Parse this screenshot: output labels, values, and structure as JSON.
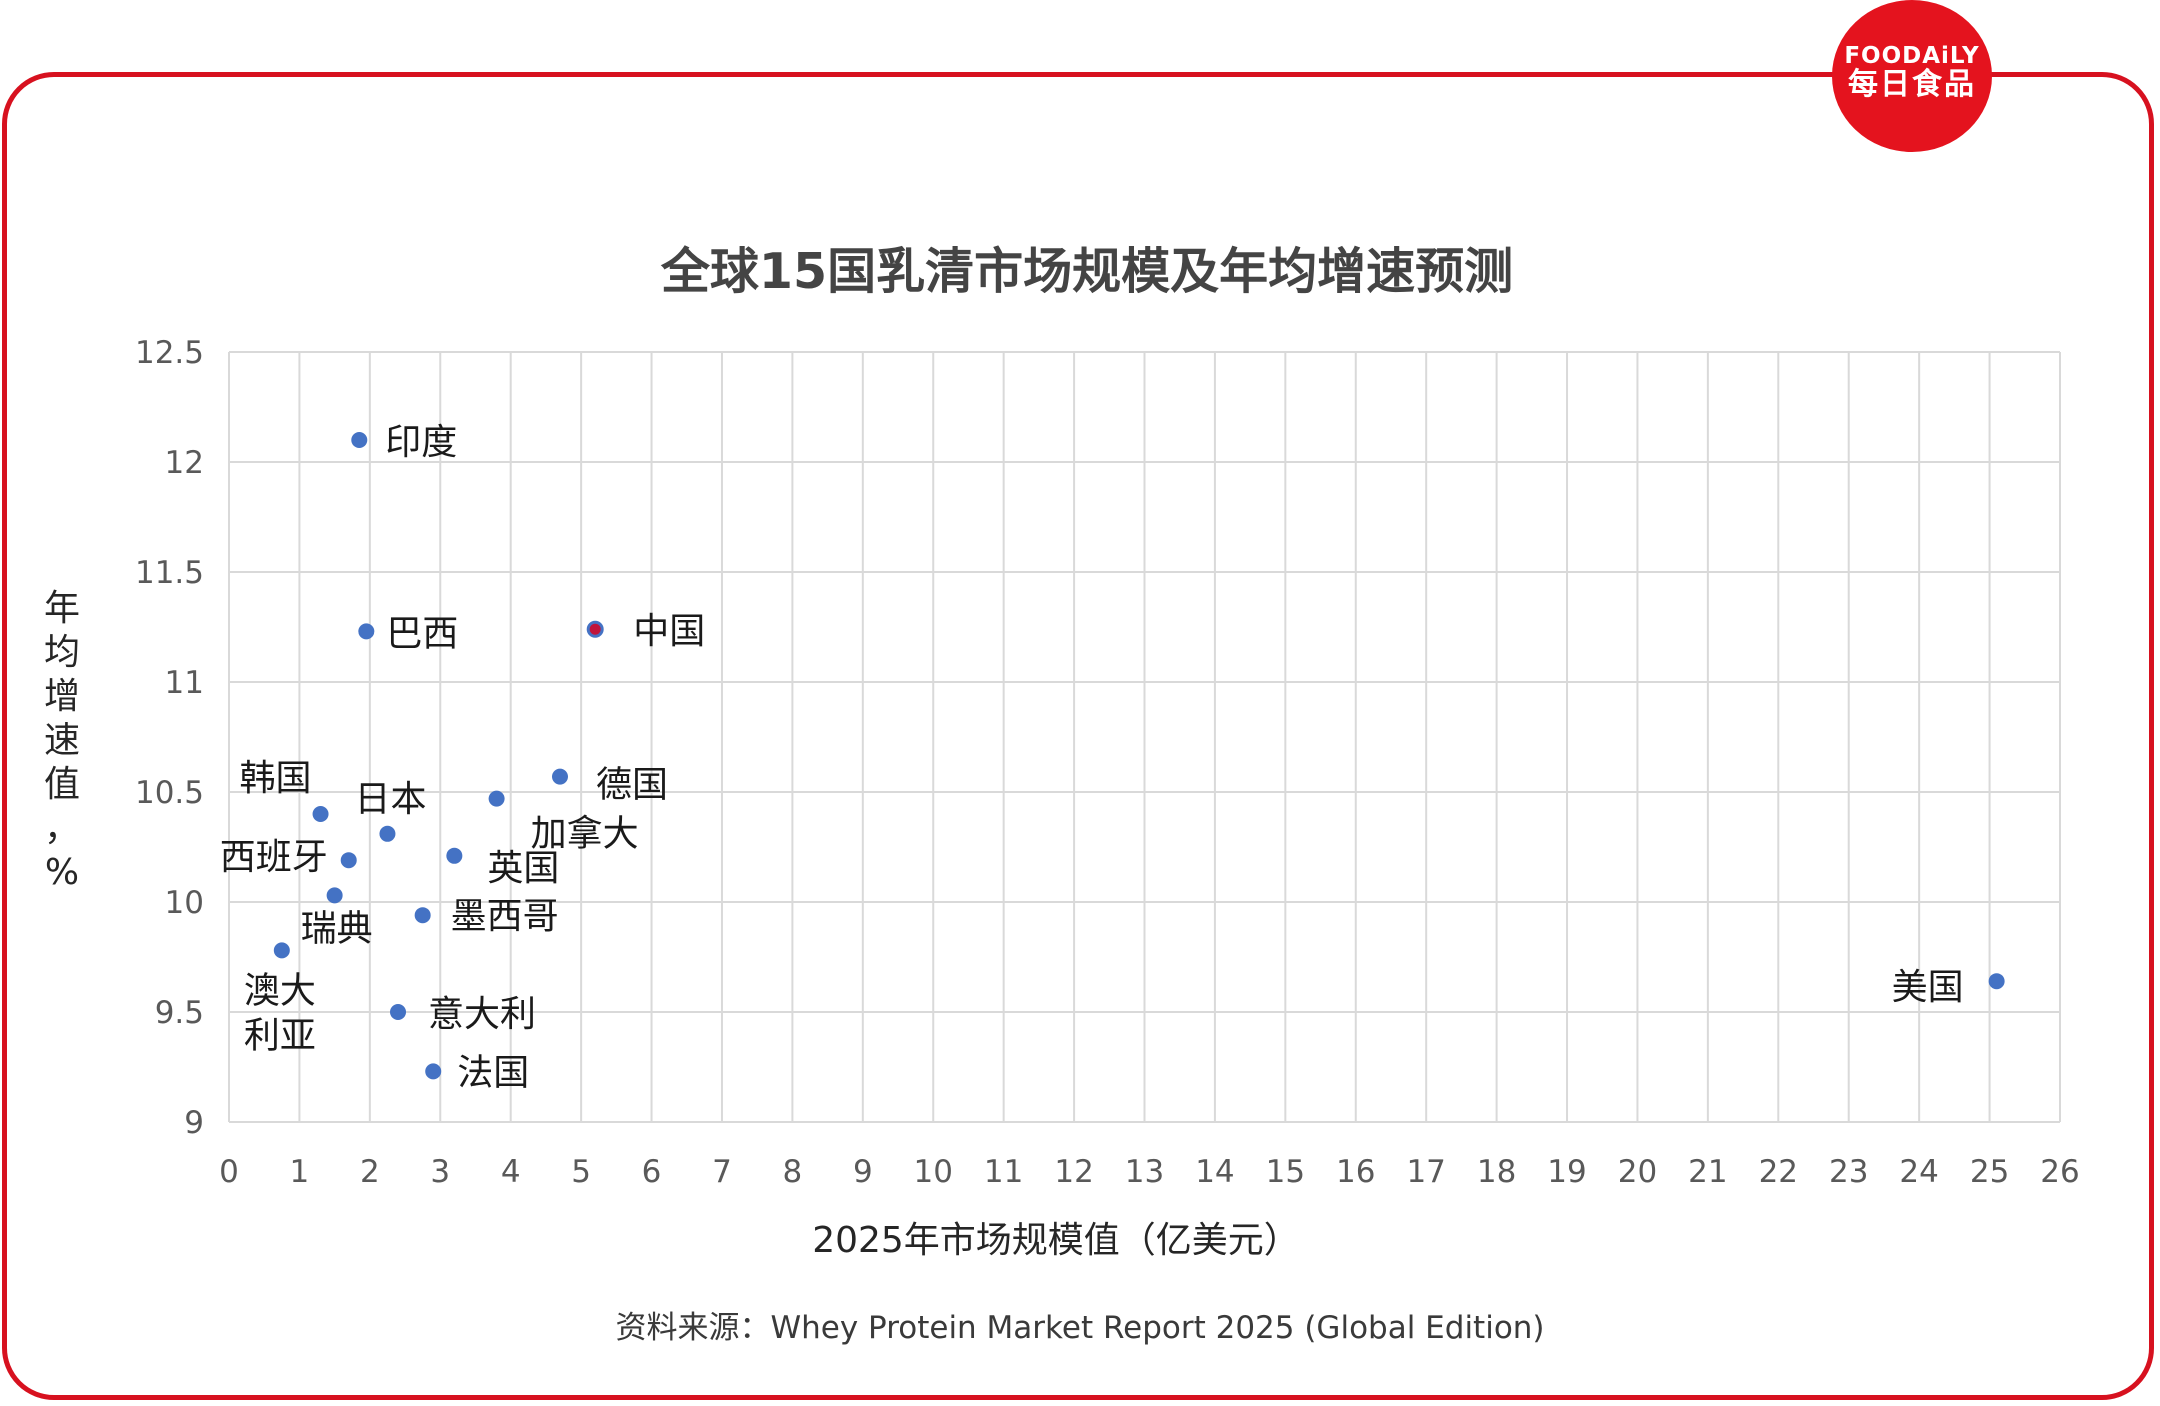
{
  "brand": {
    "logo_line1": "FOODAiLY",
    "logo_line2": "每日食品",
    "frame_color": "#d7111f",
    "logo_color": "#e4131e"
  },
  "source_note": "资料来源：Whey Protein Market Report 2025 (Global Edition)",
  "chart_data": {
    "type": "scatter",
    "title": "全球15国乳清市场规模及年均增速预测",
    "xlabel": "2025年市场规模值（亿美元）",
    "ylabel": "年均增速值，%",
    "xlim": [
      0,
      26
    ],
    "ylim": [
      9,
      12.5
    ],
    "x_ticks": [
      "0",
      "1",
      "2",
      "3",
      "4",
      "5",
      "6",
      "7",
      "8",
      "9",
      "10",
      "11",
      "12",
      "13",
      "14",
      "15",
      "16",
      "17",
      "18",
      "19",
      "20",
      "21",
      "22",
      "23",
      "24",
      "25",
      "26"
    ],
    "y_ticks": [
      "9",
      "9.5",
      "10",
      "10.5",
      "11",
      "11.5",
      "12",
      "12.5"
    ],
    "grid": true,
    "legend": "none",
    "point_color": "#4472c4",
    "highlight_color": "#c0143c",
    "points": [
      {
        "name": "印度",
        "x": 1.85,
        "y": 12.1
      },
      {
        "name": "巴西",
        "x": 1.95,
        "y": 11.23
      },
      {
        "name": "中国",
        "x": 5.2,
        "y": 11.24,
        "highlight": true
      },
      {
        "name": "德国",
        "x": 4.7,
        "y": 10.57
      },
      {
        "name": "加拿大",
        "x": 3.8,
        "y": 10.47
      },
      {
        "name": "韩国",
        "x": 1.3,
        "y": 10.4
      },
      {
        "name": "日本",
        "x": 2.25,
        "y": 10.31
      },
      {
        "name": "英国",
        "x": 3.2,
        "y": 10.21
      },
      {
        "name": "西班牙",
        "x": 1.7,
        "y": 10.19
      },
      {
        "name": "瑞典",
        "x": 1.5,
        "y": 10.03
      },
      {
        "name": "墨西哥",
        "x": 2.75,
        "y": 9.94
      },
      {
        "name": "澳大利亚",
        "x": 0.75,
        "y": 9.78
      },
      {
        "name": "意大利",
        "x": 2.4,
        "y": 9.5
      },
      {
        "name": "法国",
        "x": 2.9,
        "y": 9.23
      },
      {
        "name": "美国",
        "x": 25.1,
        "y": 9.64
      }
    ]
  }
}
